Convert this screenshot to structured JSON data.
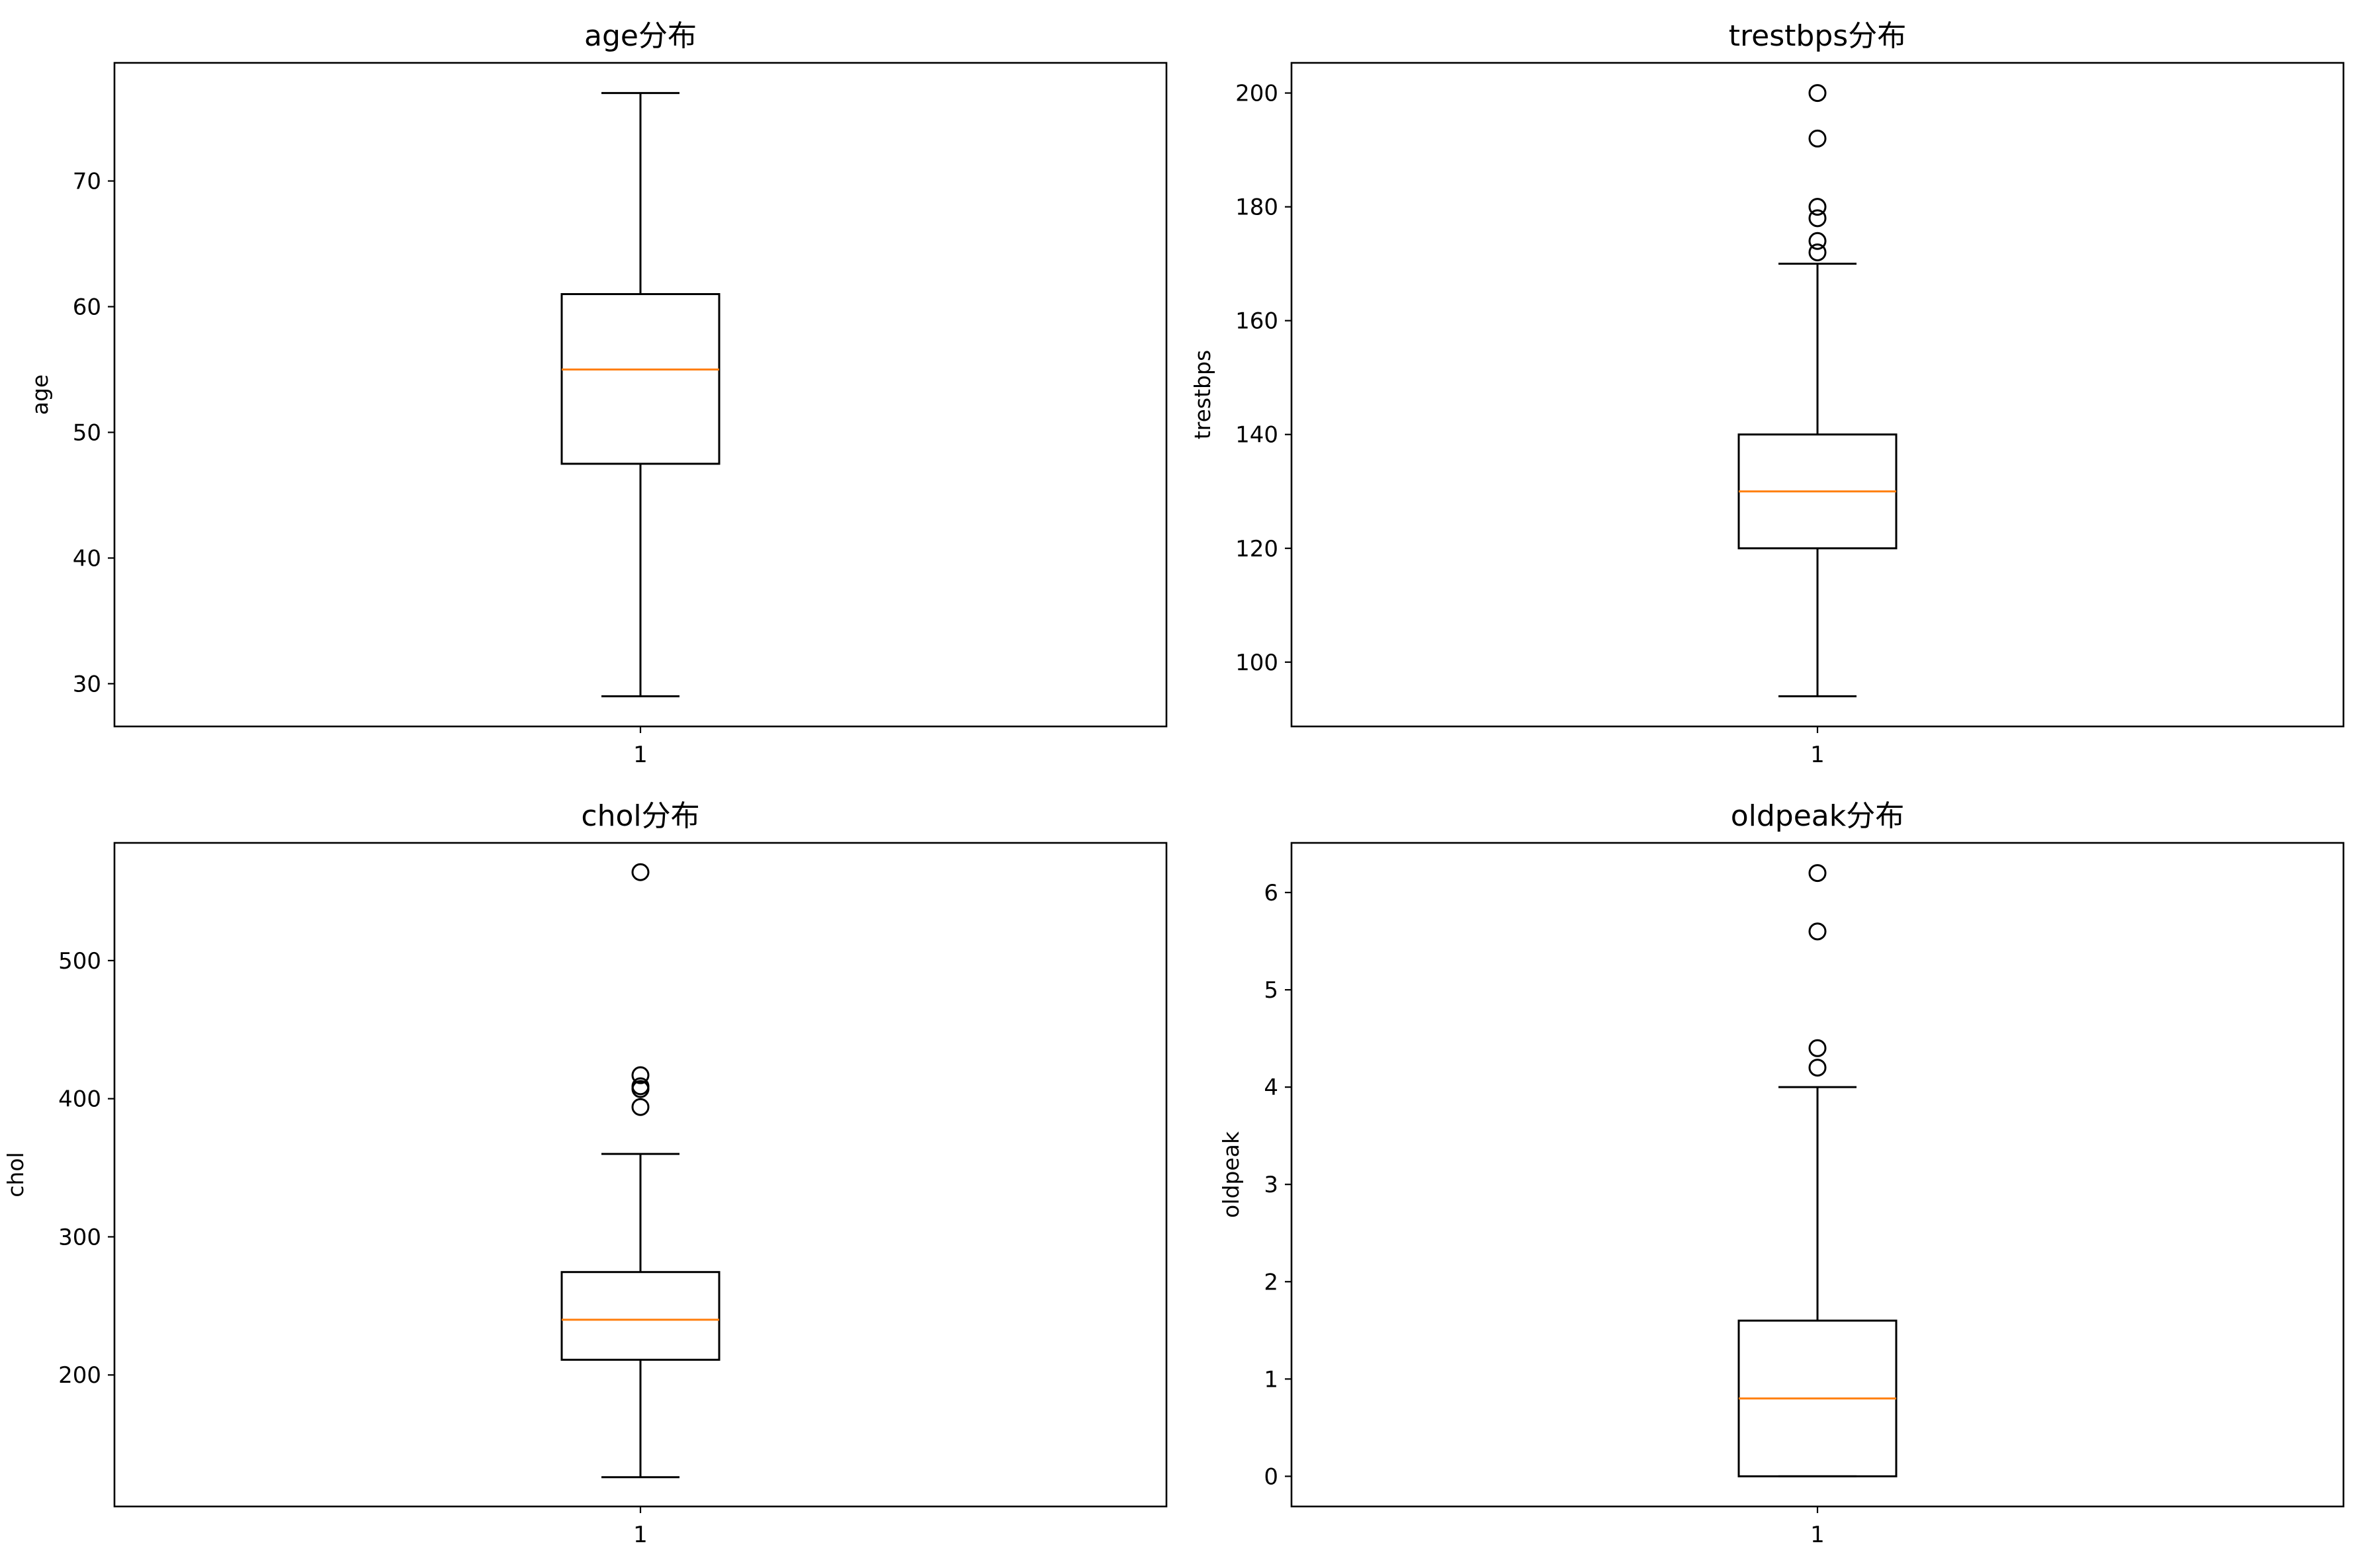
{
  "chart_data": [
    {
      "type": "box",
      "title": "age分布",
      "xlabel": "",
      "ylabel": "age",
      "categories": [
        "1"
      ],
      "ylim": [
        26.6,
        79.4
      ],
      "yticks": [
        30,
        40,
        50,
        60,
        70
      ],
      "ytick_labels": [
        "30",
        "40",
        "50",
        "60",
        "70"
      ],
      "box": {
        "whisker_low": 29,
        "q1": 47.5,
        "median": 55,
        "q3": 61,
        "whisker_high": 77
      },
      "outliers": [],
      "colors": {
        "box": "#000000",
        "median": "#ff7f0e"
      }
    },
    {
      "type": "box",
      "title": "trestbps分布",
      "xlabel": "",
      "ylabel": "trestbps",
      "categories": [
        "1"
      ],
      "ylim": [
        88.7,
        205.3
      ],
      "yticks": [
        100,
        120,
        140,
        160,
        180,
        200
      ],
      "ytick_labels": [
        "100",
        "120",
        "140",
        "160",
        "180",
        "200"
      ],
      "box": {
        "whisker_low": 94,
        "q1": 120,
        "median": 130,
        "q3": 140,
        "whisker_high": 170
      },
      "outliers": [
        172,
        174,
        178,
        180,
        192,
        200
      ],
      "colors": {
        "box": "#000000",
        "median": "#ff7f0e"
      }
    },
    {
      "type": "box",
      "title": "chol分布",
      "xlabel": "",
      "ylabel": "chol",
      "categories": [
        "1"
      ],
      "ylim": [
        104.8,
        585.2
      ],
      "yticks": [
        200,
        300,
        400,
        500
      ],
      "ytick_labels": [
        "200",
        "300",
        "400",
        "500"
      ],
      "box": {
        "whisker_low": 126,
        "q1": 211,
        "median": 240,
        "q3": 274.5,
        "whisker_high": 360
      },
      "outliers": [
        394,
        407,
        409,
        417,
        564
      ],
      "colors": {
        "box": "#000000",
        "median": "#ff7f0e"
      }
    },
    {
      "type": "box",
      "title": "oldpeak分布",
      "xlabel": "",
      "ylabel": "oldpeak",
      "categories": [
        "1"
      ],
      "ylim": [
        -0.31,
        6.51
      ],
      "yticks": [
        0,
        1,
        2,
        3,
        4,
        5,
        6
      ],
      "ytick_labels": [
        "0",
        "1",
        "2",
        "3",
        "4",
        "5",
        "6"
      ],
      "box": {
        "whisker_low": 0,
        "q1": 0,
        "median": 0.8,
        "q3": 1.6,
        "whisker_high": 4
      },
      "outliers": [
        4.2,
        4.4,
        5.6,
        6.2
      ],
      "colors": {
        "box": "#000000",
        "median": "#ff7f0e"
      }
    }
  ]
}
